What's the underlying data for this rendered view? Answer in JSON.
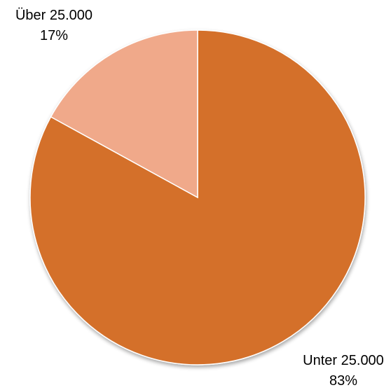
{
  "chart_data": {
    "type": "pie",
    "title": "",
    "legend": "none",
    "slices": [
      {
        "label": "Unter 25.000",
        "value": 83,
        "value_label": "83%",
        "color": "#D4702B"
      },
      {
        "label": "Über 25.000",
        "value": 17,
        "value_label": "17%",
        "color": "#F0A98A"
      }
    ]
  }
}
